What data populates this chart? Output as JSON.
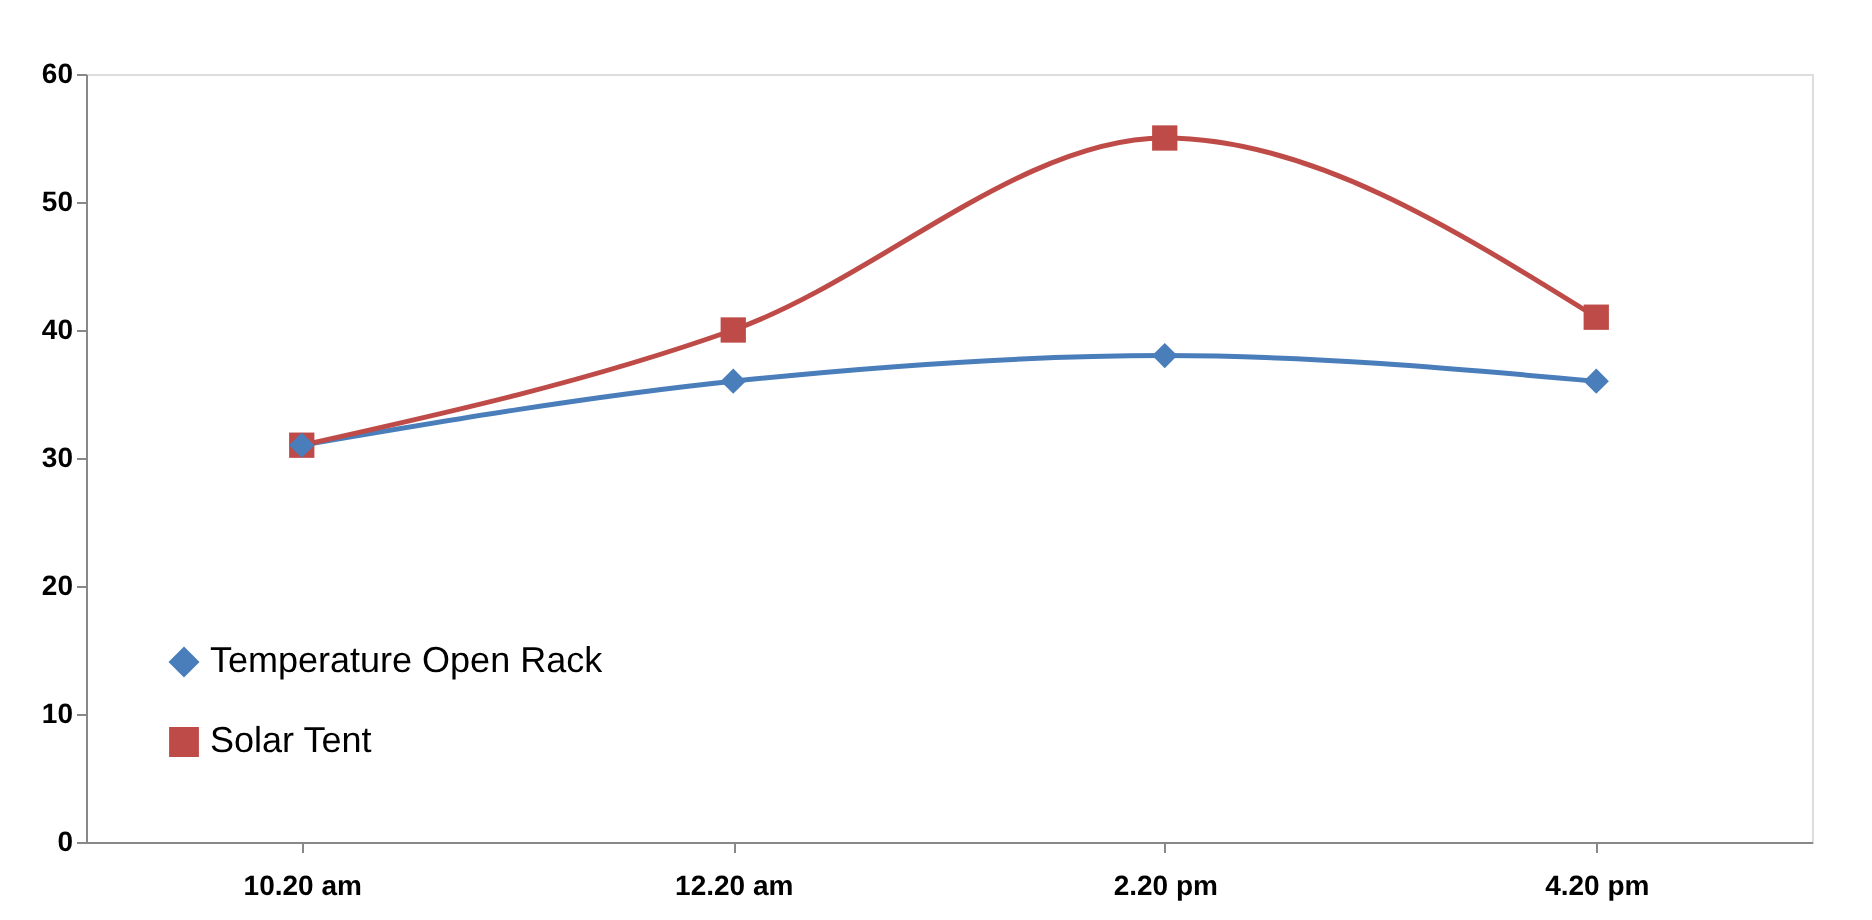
{
  "chart_data": {
    "type": "line",
    "categories": [
      "10.20 am",
      "12.20 am",
      "2.20 pm",
      "4.20 pm"
    ],
    "series": [
      {
        "name": "Temperature  Open Rack",
        "color": "#4a7ebb",
        "marker": "diamond",
        "values": [
          31,
          36,
          38,
          36
        ]
      },
      {
        "name": "Solar Tent",
        "color": "#be4b48",
        "marker": "square",
        "values": [
          31,
          40,
          55,
          41
        ]
      }
    ],
    "ylim": [
      0,
      60
    ],
    "yticks": [
      0,
      10,
      20,
      30,
      40,
      50,
      60
    ],
    "grid": false,
    "legend": "bottom left",
    "line_style": "solid"
  }
}
